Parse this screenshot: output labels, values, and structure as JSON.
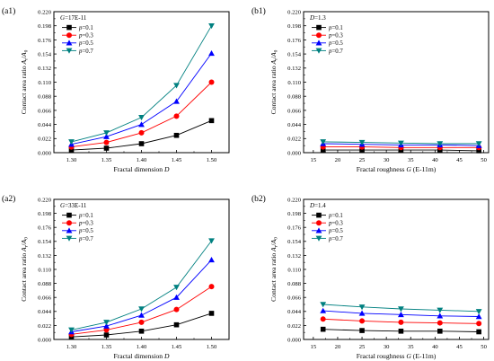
{
  "chart_data": [
    {
      "type": "line",
      "panel_label": "(a1)",
      "annotation": "G=17E-11",
      "xlabel_text": "Fractal dimension ",
      "xlabel_var": "D",
      "ylabel": "Contact area ratio Ar/A0",
      "x": [
        1.3,
        1.35,
        1.4,
        1.45,
        1.5
      ],
      "x_ticks": [
        "1.30",
        "1.35",
        "1.40",
        "1.45",
        "1.50"
      ],
      "xlim": [
        1.275,
        1.525
      ],
      "ylim": [
        0,
        0.22
      ],
      "y_ticks": [
        "0.000",
        "0.022",
        "0.044",
        "0.066",
        "0.088",
        "0.110",
        "0.132",
        "0.154",
        "0.176",
        "0.198",
        "0.220"
      ],
      "series": [
        {
          "name": "p=0.1",
          "values": [
            0.004,
            0.007,
            0.014,
            0.027,
            0.05
          ]
        },
        {
          "name": "p=0.3",
          "values": [
            0.009,
            0.016,
            0.031,
            0.057,
            0.11
          ]
        },
        {
          "name": "p=0.5",
          "values": [
            0.013,
            0.025,
            0.044,
            0.08,
            0.155
          ]
        },
        {
          "name": "p=0.7",
          "values": [
            0.017,
            0.031,
            0.055,
            0.105,
            0.198
          ]
        }
      ]
    },
    {
      "type": "line",
      "panel_label": "(b1)",
      "annotation": "D=1.3",
      "xlabel_text": "Fractal roughness ",
      "xlabel_var": "G",
      "xlabel_suffix": " (E-11m)",
      "ylabel": "Contact area ratio Ar/A0",
      "x": [
        17,
        25,
        33,
        41,
        49
      ],
      "x_ticks": [
        "15",
        "20",
        "25",
        "30",
        "35",
        "40",
        "45",
        "50"
      ],
      "x_tick_values": [
        15,
        20,
        25,
        30,
        35,
        40,
        45,
        50
      ],
      "xlim": [
        13,
        51
      ],
      "ylim": [
        0,
        0.22
      ],
      "y_ticks": [
        "0.000",
        "0.022",
        "0.044",
        "0.066",
        "0.088",
        "0.110",
        "0.132",
        "0.154",
        "0.176",
        "0.198",
        "0.220"
      ],
      "series": [
        {
          "name": "p=0.1",
          "values": [
            0.004,
            0.004,
            0.004,
            0.004,
            0.003
          ]
        },
        {
          "name": "p=0.3",
          "values": [
            0.009,
            0.009,
            0.008,
            0.008,
            0.008
          ]
        },
        {
          "name": "p=0.5",
          "values": [
            0.014,
            0.013,
            0.012,
            0.012,
            0.011
          ]
        },
        {
          "name": "p=0.7",
          "values": [
            0.017,
            0.016,
            0.015,
            0.014,
            0.014
          ]
        }
      ]
    },
    {
      "type": "line",
      "panel_label": "(a2)",
      "annotation": "G=33E-11",
      "xlabel_text": "Fractal dimension ",
      "xlabel_var": "D",
      "ylabel": "Contact area ratio Ar/A0",
      "x": [
        1.3,
        1.35,
        1.4,
        1.45,
        1.5
      ],
      "x_ticks": [
        "1.30",
        "1.35",
        "1.40",
        "1.45",
        "1.50"
      ],
      "xlim": [
        1.275,
        1.525
      ],
      "ylim": [
        0,
        0.22
      ],
      "y_ticks": [
        "0.000",
        "0.022",
        "0.044",
        "0.066",
        "0.088",
        "0.110",
        "0.132",
        "0.154",
        "0.176",
        "0.198",
        "0.220"
      ],
      "series": [
        {
          "name": "p=0.1",
          "values": [
            0.004,
            0.007,
            0.013,
            0.023,
            0.041
          ]
        },
        {
          "name": "p=0.3",
          "values": [
            0.008,
            0.015,
            0.027,
            0.047,
            0.083
          ]
        },
        {
          "name": "p=0.5",
          "values": [
            0.012,
            0.021,
            0.038,
            0.066,
            0.125
          ]
        },
        {
          "name": "p=0.7",
          "values": [
            0.015,
            0.027,
            0.048,
            0.082,
            0.155
          ]
        }
      ]
    },
    {
      "type": "line",
      "panel_label": "(b2)",
      "annotation": "D=1.4",
      "xlabel_text": "Fractal roughness ",
      "xlabel_var": "G",
      "xlabel_suffix": " (E-11m)",
      "ylabel": "Contact area ratio Ar/A0",
      "x": [
        17,
        25,
        33,
        41,
        49
      ],
      "x_ticks": [
        "15",
        "20",
        "25",
        "30",
        "35",
        "40",
        "45",
        "50"
      ],
      "x_tick_values": [
        15,
        20,
        25,
        30,
        35,
        40,
        45,
        50
      ],
      "xlim": [
        13,
        51
      ],
      "ylim": [
        0,
        0.22
      ],
      "y_ticks": [
        "0.000",
        "0.022",
        "0.044",
        "0.066",
        "0.088",
        "0.110",
        "0.132",
        "0.154",
        "0.176",
        "0.198",
        "0.220"
      ],
      "series": [
        {
          "name": "p=0.1",
          "values": [
            0.016,
            0.014,
            0.013,
            0.013,
            0.012
          ]
        },
        {
          "name": "p=0.3",
          "values": [
            0.032,
            0.029,
            0.027,
            0.026,
            0.025
          ]
        },
        {
          "name": "p=0.5",
          "values": [
            0.045,
            0.041,
            0.039,
            0.037,
            0.036
          ]
        },
        {
          "name": "p=0.7",
          "values": [
            0.055,
            0.051,
            0.048,
            0.046,
            0.044
          ]
        }
      ]
    }
  ],
  "series_style": [
    {
      "color": "#000000",
      "marker": "square"
    },
    {
      "color": "#ff0000",
      "marker": "circle"
    },
    {
      "color": "#0000ff",
      "marker": "triangle-up"
    },
    {
      "color": "#008080",
      "marker": "triangle-down"
    }
  ]
}
